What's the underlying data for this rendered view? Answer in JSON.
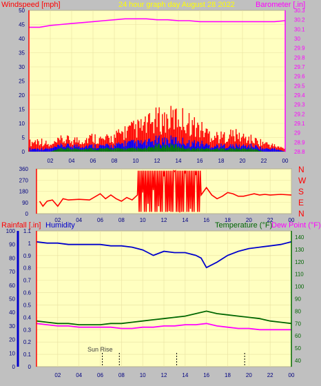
{
  "colors": {
    "background": "#c0c0c0",
    "plot": "#ffffc0",
    "wind_speed": "#ff0000",
    "wind_avg": "#0000ff",
    "wind_low": "#008000",
    "barometer": "#ff00ff",
    "direction": "#ff0000",
    "humidity": "#0000cc",
    "temperature": "#006600",
    "dew_point": "#ff00ff",
    "title": "#ffff00",
    "rain_axis": "#ff0000"
  },
  "texts": {
    "windspeed_label": "Windspeed [mph]",
    "graph_title": "24 hour graph day   August 28 2022",
    "barometer_label": "Barometer [.in]",
    "rainfall_label": "Rainfall [.in]",
    "humidity_label": "Humidity",
    "temperature_label": "Temperature (°F)",
    "dewpoint_label": "Dew Point (°F)",
    "sunrise_label": "Sun Rise",
    "compass": [
      "N",
      "W",
      "S",
      "E",
      "N"
    ]
  },
  "chart_data": [
    {
      "type": "line",
      "panel": "wind_barometer",
      "x_ticks": [
        "02",
        "04",
        "06",
        "08",
        "10",
        "12",
        "14",
        "16",
        "18",
        "20",
        "22",
        "00"
      ],
      "xlim": [
        0,
        24
      ],
      "y_left": {
        "label": "Windspeed [mph]",
        "ylim": [
          0,
          50
        ],
        "ticks": [
          0,
          5,
          10,
          15,
          20,
          25,
          30,
          35,
          40,
          45,
          50
        ]
      },
      "y_right": {
        "label": "Barometer [.in]",
        "ylim": [
          28.8,
          30.3
        ],
        "ticks": [
          "28.8",
          "28.9",
          "29",
          "29.1",
          "29.2",
          "29.3",
          "29.4",
          "29.5",
          "29.6",
          "29.7",
          "29.8",
          "29.9",
          "30",
          "30.1",
          "30.2",
          "30.3"
        ]
      },
      "series": [
        {
          "key": "barometer",
          "axis": "right",
          "x": [
            0,
            1,
            2,
            3,
            4,
            5,
            6,
            7,
            8,
            9,
            10,
            11,
            12,
            13,
            14,
            15,
            16,
            17,
            18,
            19,
            20,
            21,
            22,
            23,
            24
          ],
          "values": [
            30.12,
            30.12,
            30.14,
            30.15,
            30.16,
            30.17,
            30.18,
            30.19,
            30.2,
            30.21,
            30.21,
            30.21,
            30.2,
            30.2,
            30.19,
            30.19,
            30.18,
            30.18,
            30.18,
            30.18,
            30.18,
            30.18,
            30.18,
            30.18,
            30.19
          ]
        },
        {
          "key": "wind_gust",
          "axis": "left",
          "x": [
            0,
            1,
            2,
            3,
            4,
            5,
            6,
            7,
            8,
            9,
            10,
            11,
            12,
            13,
            14,
            15,
            16,
            17,
            18,
            19,
            20,
            21,
            22,
            23,
            24
          ],
          "values": [
            3,
            4,
            2,
            4,
            4,
            4,
            5,
            4,
            5,
            7,
            8,
            9,
            11,
            11,
            12,
            10,
            8,
            6,
            5,
            6,
            5,
            4,
            3,
            2,
            1
          ]
        },
        {
          "key": "wind_avg",
          "axis": "left",
          "x": [
            0,
            1,
            2,
            3,
            4,
            5,
            6,
            7,
            8,
            9,
            10,
            11,
            12,
            13,
            14,
            15,
            16,
            17,
            18,
            19,
            20,
            21,
            22,
            23,
            24
          ],
          "values": [
            1,
            1,
            1,
            2,
            2,
            2,
            2,
            2,
            2,
            3,
            3,
            3,
            4,
            4,
            4,
            3,
            3,
            2,
            2,
            2,
            2,
            2,
            1,
            1,
            0
          ]
        },
        {
          "key": "wind_low",
          "axis": "left",
          "x": [
            0,
            1,
            2,
            3,
            4,
            5,
            6,
            7,
            8,
            9,
            10,
            11,
            12,
            13,
            14,
            15,
            16,
            17,
            18,
            19,
            20,
            21,
            22,
            23,
            24
          ],
          "values": [
            0,
            0,
            0,
            1,
            1,
            1,
            1,
            1,
            1,
            1,
            1,
            1,
            2,
            2,
            2,
            1,
            1,
            1,
            1,
            1,
            1,
            1,
            0,
            0,
            0
          ]
        }
      ]
    },
    {
      "type": "line",
      "panel": "wind_direction",
      "x_ticks": [
        "02",
        "04",
        "06",
        "08",
        "10",
        "12",
        "14",
        "16",
        "18",
        "20",
        "22",
        "00"
      ],
      "xlim": [
        0,
        24
      ],
      "y_left": {
        "ylim": [
          0,
          360
        ],
        "ticks": [
          0,
          90,
          180,
          270,
          360
        ]
      },
      "series": [
        {
          "key": "direction",
          "x": [
            0.3,
            0.6,
            1,
            1.5,
            2,
            2.5,
            3,
            4,
            5,
            6,
            6.5,
            7,
            7.5,
            8,
            8.5,
            9,
            9.5,
            10,
            10.5,
            11,
            11.5,
            12,
            12.5,
            13,
            13.5,
            14,
            14.5,
            15,
            15.5,
            16,
            16.5,
            17,
            17.5,
            18,
            18.5,
            19,
            19.5,
            20,
            20.5,
            21,
            21.5,
            22,
            23,
            24
          ],
          "values": [
            100,
            60,
            100,
            110,
            60,
            120,
            110,
            115,
            110,
            160,
            120,
            150,
            120,
            100,
            130,
            110,
            150,
            170,
            80,
            190,
            60,
            300,
            20,
            340,
            10,
            330,
            40,
            310,
            150,
            210,
            150,
            120,
            140,
            170,
            160,
            140,
            140,
            150,
            160,
            150,
            155,
            150,
            155,
            150
          ]
        }
      ]
    },
    {
      "type": "line",
      "panel": "humidity_temperature",
      "x_ticks": [
        "02",
        "04",
        "06",
        "08",
        "10",
        "12",
        "14",
        "16",
        "18",
        "20",
        "22",
        "00"
      ],
      "xlim": [
        0,
        24
      ],
      "y_left": {
        "label": "Rainfall [.in]",
        "ylim": [
          0,
          1.1
        ],
        "ticks": [
          "0",
          "0.1",
          "0.2",
          "0.3",
          "0.4",
          "0.5",
          "0.6",
          "0.7",
          "0.8",
          "0.9",
          "1",
          "1.1"
        ]
      },
      "y_humidity": {
        "ylim": [
          0,
          100
        ],
        "ticks": [
          0,
          10,
          20,
          30,
          40,
          50,
          60,
          70,
          80,
          90,
          100
        ]
      },
      "y_right": {
        "ylim": [
          35,
          145
        ],
        "ticks": [
          40,
          50,
          60,
          70,
          80,
          90,
          100,
          110,
          120,
          130,
          140
        ]
      },
      "series": [
        {
          "key": "humidity",
          "axis": "humidity",
          "x": [
            0,
            1,
            2,
            3,
            4,
            5,
            6,
            7,
            8,
            9,
            10,
            10.5,
            11,
            12,
            13,
            14,
            15,
            15.5,
            16,
            17,
            18,
            19,
            20,
            21,
            22,
            23,
            24
          ],
          "values": [
            92,
            91,
            91,
            90,
            90,
            90,
            90,
            89,
            89,
            88,
            86,
            84,
            82,
            85,
            84,
            84,
            82,
            80,
            73,
            77,
            82,
            85,
            87,
            88,
            89,
            90,
            92
          ]
        },
        {
          "key": "temperature",
          "axis": "right",
          "x": [
            0,
            1,
            2,
            3,
            4,
            5,
            6,
            7,
            8,
            9,
            10,
            11,
            12,
            13,
            14,
            15,
            16,
            17,
            18,
            19,
            20,
            21,
            22,
            23,
            24
          ],
          "values": [
            72,
            71,
            70,
            70,
            69,
            69,
            69,
            70,
            70,
            71,
            72,
            73,
            74,
            75,
            76,
            78,
            80,
            78,
            77,
            76,
            75,
            74,
            72,
            71,
            70
          ]
        },
        {
          "key": "dew_point",
          "axis": "right",
          "x": [
            0,
            1,
            2,
            3,
            4,
            5,
            6,
            7,
            8,
            9,
            10,
            11,
            12,
            13,
            14,
            15,
            16,
            17,
            18,
            19,
            20,
            21,
            22,
            23,
            24
          ],
          "values": [
            70,
            69,
            68,
            68,
            67,
            67,
            67,
            67,
            66,
            66,
            67,
            67,
            68,
            68,
            69,
            69,
            70,
            68,
            67,
            66,
            66,
            65,
            65,
            65,
            65
          ]
        }
      ]
    }
  ]
}
